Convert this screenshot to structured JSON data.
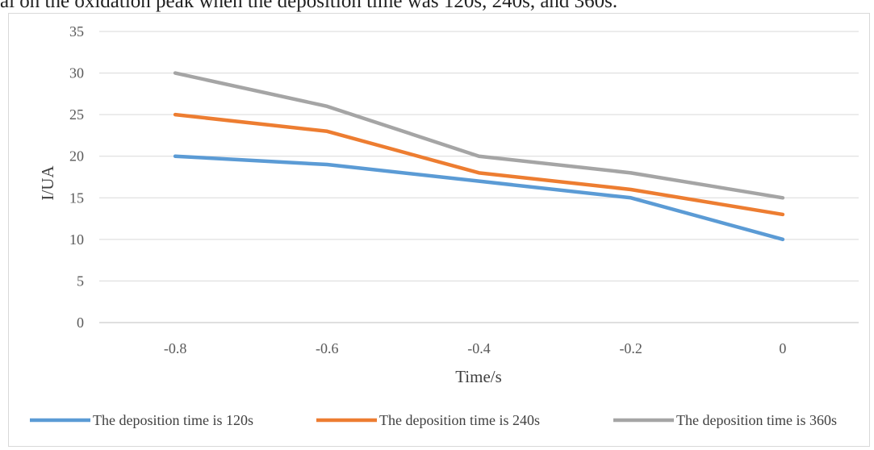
{
  "caption": "al on the oxidation peak when the deposition time was 120s, 240s, and 360s.",
  "chart_data": {
    "type": "line",
    "title": "",
    "xlabel": "Time/s",
    "ylabel": "I/UA",
    "x": [
      -0.8,
      -0.6,
      -0.4,
      -0.2,
      0
    ],
    "x_tick_labels": [
      "-0.8",
      "-0.6",
      "-0.4",
      "-0.2",
      "0"
    ],
    "xlim": [
      -0.9,
      0.1
    ],
    "ylim": [
      0,
      35
    ],
    "y_ticks": [
      0,
      5,
      10,
      15,
      20,
      25,
      30,
      35
    ],
    "grid": true,
    "legend_position": "bottom",
    "series": [
      {
        "name": "The deposition time is 120s",
        "color": "#5b9bd5",
        "values": [
          20,
          19,
          17,
          15,
          10
        ]
      },
      {
        "name": "The deposition time is 240s",
        "color": "#ed7d31",
        "values": [
          25,
          23,
          18,
          16,
          13
        ]
      },
      {
        "name": "The deposition time is 360s",
        "color": "#a5a5a5",
        "values": [
          30,
          26,
          20,
          18,
          15
        ]
      }
    ]
  }
}
